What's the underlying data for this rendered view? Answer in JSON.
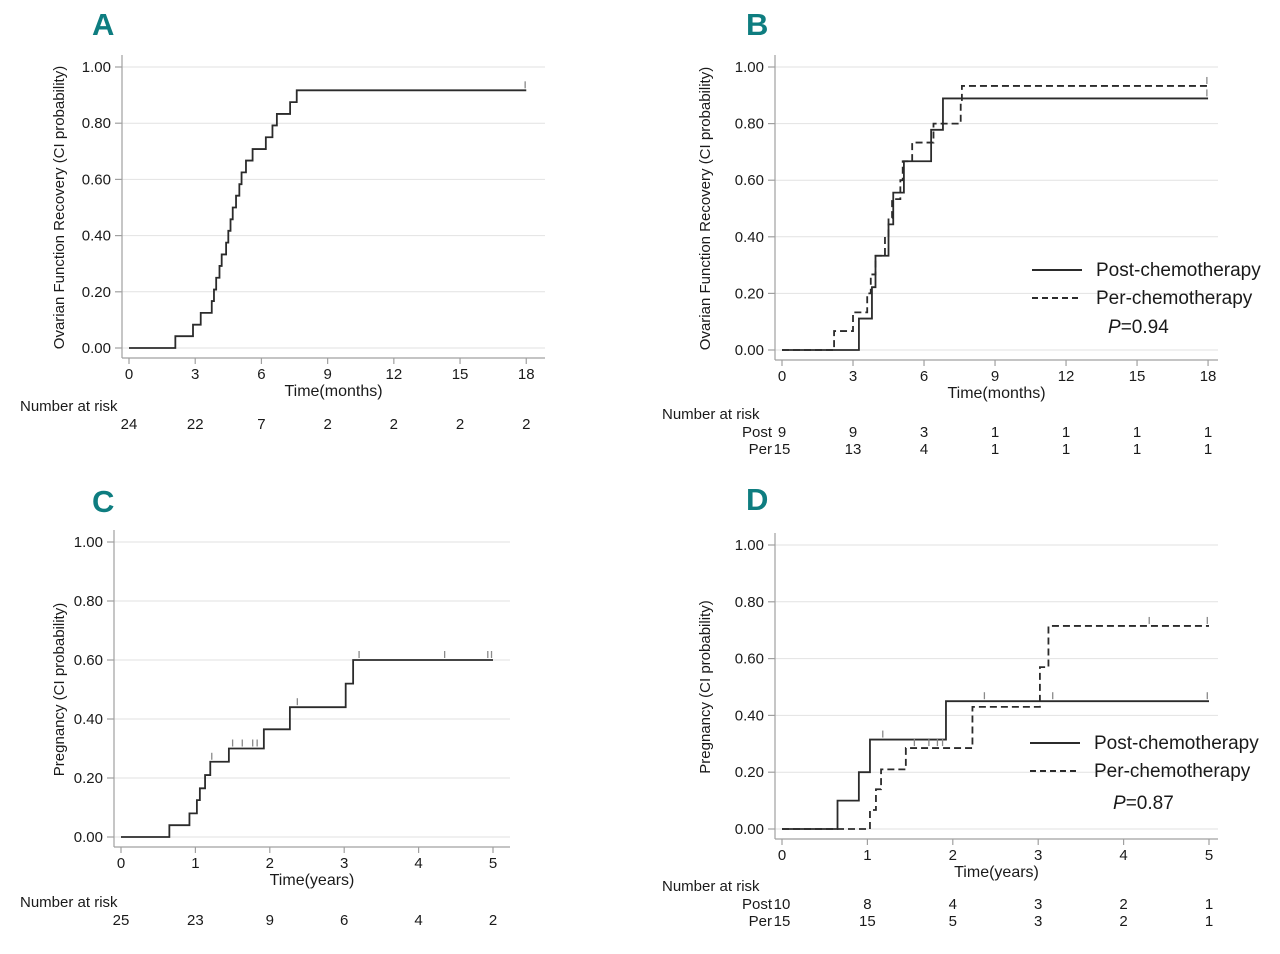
{
  "figure": {
    "background": "#ffffff",
    "panel_letter_color": "#0e7d80",
    "curve_color": "#2b2b2b",
    "grid_color": "#e2e2e2",
    "axis_color": "#a0a0a0",
    "censor_color": "#8a8a8a"
  },
  "chart_data": [
    {
      "type": "line",
      "panel_label": "A",
      "ylabel": "Ovarian Function Recovery (CI probability)",
      "xlabel": "Time(months)",
      "xlim": [
        0,
        18
      ],
      "ylim": [
        0,
        1
      ],
      "grid": true,
      "xticks": [
        0,
        3,
        6,
        9,
        12,
        15,
        18
      ],
      "ytick_values": [
        0,
        0.2,
        0.4,
        0.6,
        0.8,
        1.0
      ],
      "ytick_labels": [
        "0.00",
        "0.20",
        "0.40",
        "0.60",
        "0.80",
        "1.00"
      ],
      "series": [
        {
          "style": "solid",
          "steps": [
            [
              2.1,
              0.042
            ],
            [
              2.9,
              0.083
            ],
            [
              3.25,
              0.125
            ],
            [
              3.75,
              0.167
            ],
            [
              3.85,
              0.208
            ],
            [
              3.95,
              0.25
            ],
            [
              4.1,
              0.292
            ],
            [
              4.2,
              0.333
            ],
            [
              4.4,
              0.375
            ],
            [
              4.5,
              0.417
            ],
            [
              4.6,
              0.458
            ],
            [
              4.7,
              0.5
            ],
            [
              4.85,
              0.542
            ],
            [
              5.0,
              0.583
            ],
            [
              5.1,
              0.625
            ],
            [
              5.3,
              0.667
            ],
            [
              5.6,
              0.708
            ],
            [
              6.2,
              0.75
            ],
            [
              6.5,
              0.792
            ],
            [
              6.7,
              0.833
            ],
            [
              7.3,
              0.875
            ],
            [
              7.6,
              0.917
            ]
          ],
          "censored": [
            [
              17.95,
              0.917
            ]
          ]
        }
      ],
      "risk_table": {
        "label": "Number at risk",
        "rows": [
          {
            "values": [
              24,
              22,
              7,
              2,
              2,
              2,
              2
            ]
          }
        ]
      }
    },
    {
      "type": "line",
      "panel_label": "B",
      "ylabel": "Ovarian Function Recovery (CI probability)",
      "xlabel": "Time(months)",
      "xlim": [
        0,
        18
      ],
      "ylim": [
        0,
        1
      ],
      "grid": true,
      "xticks": [
        0,
        3,
        6,
        9,
        12,
        15,
        18
      ],
      "ytick_values": [
        0,
        0.2,
        0.4,
        0.6,
        0.8,
        1.0
      ],
      "ytick_labels": [
        "0.00",
        "0.20",
        "0.40",
        "0.60",
        "0.80",
        "1.00"
      ],
      "p_text": "P=0.94",
      "legend": {
        "position": "right-middle",
        "entries": [
          {
            "label": "Post-chemotherapy",
            "style": "solid"
          },
          {
            "label": "Per-chemotherapy",
            "style": "dashed"
          }
        ]
      },
      "series": [
        {
          "name": "Post-chemotherapy",
          "style": "solid",
          "steps": [
            [
              3.25,
              0.111
            ],
            [
              3.8,
              0.222
            ],
            [
              3.95,
              0.333
            ],
            [
              4.5,
              0.444
            ],
            [
              4.7,
              0.556
            ],
            [
              5.15,
              0.667
            ],
            [
              6.3,
              0.778
            ],
            [
              6.8,
              0.889
            ]
          ],
          "censored": [
            [
              17.95,
              0.889
            ]
          ]
        },
        {
          "name": "Per-chemotherapy",
          "style": "dashed",
          "steps": [
            [
              2.2,
              0.067
            ],
            [
              3.0,
              0.133
            ],
            [
              3.6,
              0.2
            ],
            [
              3.75,
              0.267
            ],
            [
              3.95,
              0.333
            ],
            [
              4.35,
              0.4
            ],
            [
              4.5,
              0.467
            ],
            [
              4.65,
              0.533
            ],
            [
              5.0,
              0.6
            ],
            [
              5.1,
              0.667
            ],
            [
              5.5,
              0.733
            ],
            [
              6.4,
              0.8
            ],
            [
              7.55,
              0.867
            ],
            [
              7.6,
              0.933
            ]
          ],
          "censored": [
            [
              17.95,
              0.933
            ]
          ]
        }
      ],
      "risk_table": {
        "label": "Number at risk",
        "rows": [
          {
            "name": "Post",
            "values": [
              9,
              9,
              3,
              1,
              1,
              1,
              1
            ]
          },
          {
            "name": "Per",
            "values": [
              15,
              13,
              4,
              1,
              1,
              1,
              1
            ]
          }
        ]
      }
    },
    {
      "type": "line",
      "panel_label": "C",
      "ylabel": "Pregnancy (CI probability)",
      "xlabel": "Time(years)",
      "xlim": [
        0,
        5
      ],
      "ylim": [
        0,
        1
      ],
      "grid": true,
      "xticks": [
        0,
        1,
        2,
        3,
        4,
        5
      ],
      "ytick_values": [
        0,
        0.2,
        0.4,
        0.6,
        0.8,
        1.0
      ],
      "ytick_labels": [
        "0.00",
        "0.20",
        "0.40",
        "0.60",
        "0.80",
        "1.00"
      ],
      "series": [
        {
          "style": "solid",
          "steps": [
            [
              0.65,
              0.04
            ],
            [
              0.92,
              0.08
            ],
            [
              1.02,
              0.125
            ],
            [
              1.06,
              0.165
            ],
            [
              1.13,
              0.21
            ],
            [
              1.2,
              0.255
            ],
            [
              1.45,
              0.3
            ],
            [
              1.92,
              0.365
            ],
            [
              2.27,
              0.44
            ],
            [
              3.02,
              0.52
            ],
            [
              3.12,
              0.6
            ]
          ],
          "censored": [
            [
              1.22,
              0.255
            ],
            [
              1.5,
              0.3
            ],
            [
              1.63,
              0.3
            ],
            [
              1.77,
              0.3
            ],
            [
              1.83,
              0.3
            ],
            [
              2.37,
              0.44
            ],
            [
              3.2,
              0.6
            ],
            [
              4.35,
              0.6
            ],
            [
              4.93,
              0.6
            ],
            [
              4.98,
              0.6
            ]
          ]
        }
      ],
      "risk_table": {
        "label": "Number at risk",
        "rows": [
          {
            "values": [
              25,
              23,
              9,
              6,
              4,
              2
            ]
          }
        ]
      }
    },
    {
      "type": "line",
      "panel_label": "D",
      "ylabel": "Pregnancy (CI probability)",
      "xlabel": "Time(years)",
      "xlim": [
        0,
        5
      ],
      "ylim": [
        0,
        1
      ],
      "grid": true,
      "xticks": [
        0,
        1,
        2,
        3,
        4,
        5
      ],
      "ytick_values": [
        0,
        0.2,
        0.4,
        0.6,
        0.8,
        1.0
      ],
      "ytick_labels": [
        "0.00",
        "0.20",
        "0.40",
        "0.60",
        "0.80",
        "1.00"
      ],
      "p_text": "P=0.87",
      "legend": {
        "position": "right-middle",
        "entries": [
          {
            "label": "Post-chemotherapy",
            "style": "solid"
          },
          {
            "label": "Per-chemotherapy",
            "style": "dashed"
          }
        ]
      },
      "series": [
        {
          "name": "Post-chemotherapy",
          "style": "solid",
          "steps": [
            [
              0.65,
              0.1
            ],
            [
              0.9,
              0.2
            ],
            [
              1.03,
              0.315
            ],
            [
              1.92,
              0.45
            ]
          ],
          "censored": [
            [
              1.18,
              0.315
            ],
            [
              2.37,
              0.45
            ],
            [
              3.17,
              0.45
            ],
            [
              4.98,
              0.45
            ]
          ]
        },
        {
          "name": "Per-chemotherapy",
          "style": "dashed",
          "steps": [
            [
              1.03,
              0.067
            ],
            [
              1.1,
              0.14
            ],
            [
              1.16,
              0.21
            ],
            [
              1.45,
              0.285
            ],
            [
              2.23,
              0.43
            ],
            [
              3.02,
              0.57
            ],
            [
              3.12,
              0.715
            ]
          ],
          "censored": [
            [
              1.55,
              0.285
            ],
            [
              1.72,
              0.285
            ],
            [
              1.82,
              0.285
            ],
            [
              1.88,
              0.285
            ],
            [
              4.3,
              0.715
            ],
            [
              4.98,
              0.715
            ]
          ]
        }
      ],
      "risk_table": {
        "label": "Number at risk",
        "rows": [
          {
            "name": "Post",
            "values": [
              10,
              8,
              4,
              3,
              2,
              1
            ]
          },
          {
            "name": "Per",
            "values": [
              15,
              15,
              5,
              3,
              2,
              1
            ]
          }
        ]
      }
    }
  ]
}
